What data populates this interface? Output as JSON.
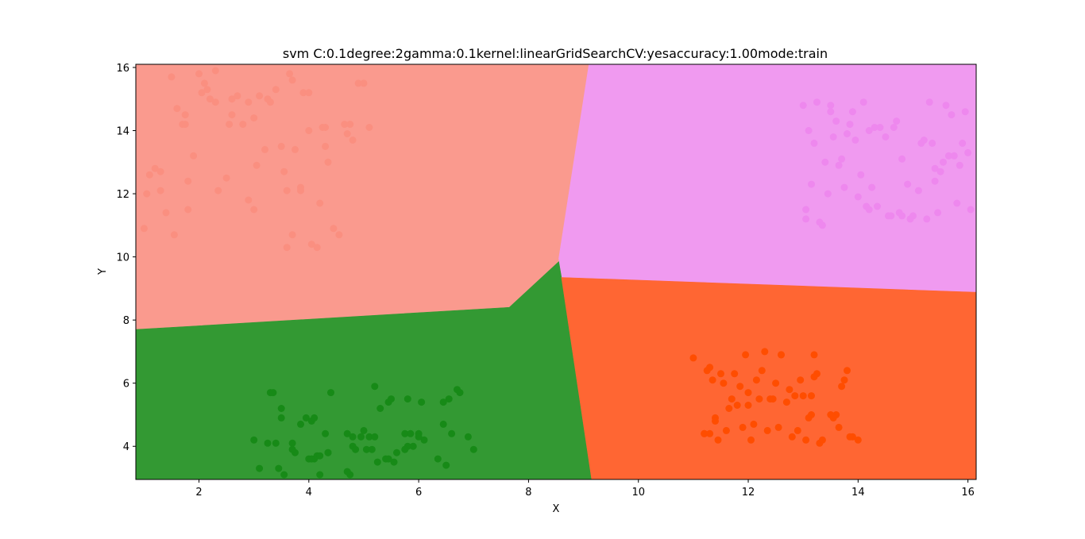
{
  "chart_data": {
    "type": "scatter",
    "title": "svm C:0.1degree:2gamma:0.1kernel:linearGridSearchCV:yesaccuracy:1.00mode:train",
    "xlabel": "X",
    "ylabel": "Y",
    "xlim": [
      0.85,
      16.15
    ],
    "ylim": [
      2.95,
      16.1
    ],
    "xticks": [
      2,
      4,
      6,
      8,
      10,
      12,
      14,
      16
    ],
    "yticks": [
      4,
      6,
      8,
      10,
      12,
      14,
      16
    ],
    "grid": false,
    "legend": "none",
    "decision_regions": [
      {
        "class": "salmon",
        "color": "#fa9a8e",
        "polygon": [
          [
            0.85,
            16.1
          ],
          [
            9.1,
            16.1
          ],
          [
            8.55,
            9.95
          ],
          [
            8.55,
            9.85
          ],
          [
            7.65,
            8.4
          ],
          [
            0.85,
            7.7
          ]
        ]
      },
      {
        "class": "violet",
        "color": "#f09af0",
        "polygon": [
          [
            9.1,
            16.1
          ],
          [
            16.15,
            16.1
          ],
          [
            16.15,
            8.88
          ],
          [
            8.6,
            9.35
          ],
          [
            8.55,
            9.95
          ]
        ]
      },
      {
        "class": "green",
        "color": "#339933",
        "polygon": [
          [
            0.85,
            7.7
          ],
          [
            7.65,
            8.4
          ],
          [
            8.55,
            9.85
          ],
          [
            8.6,
            9.35
          ],
          [
            9.15,
            2.95
          ],
          [
            0.85,
            2.95
          ]
        ]
      },
      {
        "class": "orangered",
        "color": "#ff6633",
        "polygon": [
          [
            8.6,
            9.35
          ],
          [
            16.15,
            8.88
          ],
          [
            16.15,
            2.95
          ],
          [
            9.15,
            2.95
          ]
        ]
      }
    ],
    "series": [
      {
        "color": "#fa8f80",
        "x": [
          1.0,
          1.2,
          1.3,
          1.4,
          1.5,
          1.55,
          1.6,
          1.7,
          1.75,
          1.8,
          1.8,
          1.9,
          2.0,
          2.05,
          2.1,
          2.15,
          2.2,
          2.3,
          2.35,
          2.5,
          2.6,
          2.6,
          2.7,
          2.8,
          2.9,
          3.0,
          3.05,
          3.1,
          3.2,
          3.3,
          3.4,
          3.5,
          3.55,
          3.6,
          3.65,
          3.7,
          3.75,
          3.85,
          3.9,
          4.0,
          4.05,
          4.15,
          4.2,
          4.3,
          4.35,
          4.45,
          4.55,
          4.65,
          4.7,
          4.75,
          4.8,
          4.9,
          5.0,
          5.1,
          1.05,
          1.1,
          2.3,
          2.55,
          3.0,
          3.25,
          3.7,
          4.3,
          1.3,
          3.85,
          4.0,
          2.9,
          1.75,
          3.6,
          4.25
        ],
        "y": [
          10.9,
          12.8,
          12.1,
          11.4,
          15.7,
          10.7,
          14.7,
          14.2,
          14.5,
          12.4,
          11.5,
          13.2,
          15.8,
          15.2,
          15.5,
          15.3,
          15.0,
          15.9,
          12.1,
          12.5,
          15.0,
          14.5,
          15.1,
          14.2,
          11.8,
          11.5,
          12.9,
          15.1,
          13.4,
          14.9,
          15.3,
          13.5,
          12.7,
          12.1,
          15.8,
          15.6,
          13.4,
          12.2,
          15.2,
          14.0,
          10.4,
          10.3,
          11.7,
          14.1,
          13.0,
          10.9,
          10.7,
          14.2,
          13.9,
          14.2,
          13.7,
          15.5,
          15.5,
          14.1,
          12.0,
          12.6,
          14.9,
          14.2,
          14.4,
          15.0,
          10.7,
          13.5,
          12.7,
          12.1,
          15.2,
          14.9,
          14.2,
          10.3,
          14.1
        ]
      },
      {
        "color": "#ee88ee",
        "x": [
          13.0,
          13.05,
          13.2,
          13.3,
          13.4,
          13.5,
          13.55,
          13.6,
          13.7,
          13.75,
          13.8,
          13.9,
          14.0,
          14.1,
          14.15,
          14.2,
          14.3,
          14.35,
          14.4,
          14.5,
          14.6,
          14.7,
          14.8,
          14.9,
          15.0,
          15.1,
          15.2,
          15.3,
          15.35,
          15.4,
          15.5,
          15.6,
          15.7,
          15.75,
          15.8,
          15.9,
          16.0,
          16.05,
          13.1,
          13.25,
          13.45,
          13.65,
          13.85,
          14.05,
          14.25,
          14.55,
          14.75,
          14.95,
          15.15,
          15.45,
          15.65,
          15.85,
          13.15,
          13.35,
          13.95,
          14.65,
          15.25,
          15.55,
          15.95,
          13.05,
          13.5,
          14.2,
          14.8,
          15.4
        ],
        "y": [
          14.8,
          11.2,
          13.6,
          11.1,
          13.0,
          14.8,
          13.8,
          14.3,
          13.1,
          12.2,
          13.9,
          14.6,
          11.9,
          14.9,
          11.6,
          11.5,
          14.1,
          11.6,
          14.1,
          13.8,
          11.3,
          14.3,
          11.3,
          12.3,
          11.3,
          12.1,
          13.7,
          14.9,
          13.6,
          12.8,
          12.7,
          14.8,
          14.5,
          13.2,
          11.7,
          13.6,
          13.3,
          11.5,
          14.0,
          14.9,
          12.0,
          12.9,
          14.2,
          12.6,
          12.2,
          11.3,
          11.4,
          11.2,
          13.6,
          11.4,
          13.2,
          12.9,
          12.3,
          11.0,
          13.7,
          14.1,
          11.2,
          13.0,
          14.6,
          11.5,
          14.6,
          14.0,
          13.1,
          12.4
        ]
      },
      {
        "color": "#178a17",
        "x": [
          3.0,
          3.1,
          3.25,
          3.3,
          3.4,
          3.5,
          3.5,
          3.55,
          3.7,
          3.75,
          3.85,
          3.95,
          4.0,
          4.05,
          4.1,
          4.15,
          4.2,
          4.3,
          4.35,
          4.4,
          4.7,
          4.75,
          4.8,
          4.85,
          4.95,
          5.0,
          5.05,
          5.1,
          5.15,
          5.2,
          5.25,
          5.3,
          5.4,
          5.45,
          5.5,
          5.55,
          5.6,
          5.75,
          5.8,
          5.85,
          5.9,
          6.0,
          6.05,
          6.1,
          6.35,
          6.45,
          6.5,
          6.55,
          6.6,
          6.7,
          6.75,
          6.9,
          7.0,
          3.35,
          4.1,
          4.35,
          5.2,
          5.8,
          6.45,
          3.45,
          4.05,
          4.7,
          5.45,
          6.0,
          3.7,
          4.2,
          4.8,
          5.75
        ],
        "y": [
          4.2,
          3.3,
          4.1,
          5.7,
          4.1,
          5.2,
          4.9,
          3.1,
          4.1,
          3.8,
          4.7,
          4.9,
          3.6,
          4.8,
          3.6,
          3.7,
          3.1,
          4.4,
          3.8,
          5.7,
          4.4,
          3.1,
          4.0,
          3.9,
          4.3,
          4.5,
          3.9,
          4.3,
          3.9,
          5.9,
          3.5,
          5.2,
          3.6,
          5.4,
          5.5,
          3.5,
          3.8,
          4.4,
          5.5,
          4.4,
          4.0,
          4.4,
          5.4,
          4.2,
          3.6,
          4.7,
          3.4,
          5.5,
          4.4,
          5.8,
          5.7,
          4.3,
          3.9,
          5.7,
          4.9,
          3.8,
          4.3,
          4.0,
          5.4,
          3.3,
          3.6,
          3.2,
          3.6,
          4.3,
          3.9,
          3.7,
          4.3,
          3.9
        ],
        "note": ""
      },
      {
        "color": "#ff4d00",
        "x": [
          11.0,
          11.2,
          11.25,
          11.3,
          11.35,
          11.4,
          11.45,
          11.5,
          11.55,
          11.6,
          11.7,
          11.75,
          11.8,
          11.85,
          11.9,
          12.0,
          12.05,
          12.1,
          12.15,
          12.2,
          12.3,
          12.35,
          12.4,
          12.5,
          12.55,
          12.6,
          12.7,
          12.8,
          12.85,
          12.9,
          12.95,
          13.0,
          13.1,
          13.15,
          13.2,
          13.25,
          13.3,
          13.35,
          13.5,
          13.6,
          13.65,
          13.7,
          13.75,
          13.8,
          13.9,
          14.0,
          11.3,
          11.65,
          12.25,
          12.75,
          13.05,
          13.55,
          11.4,
          11.95,
          12.45,
          13.15,
          13.85,
          11.2,
          12.0,
          12.6,
          13.2
        ],
        "y": [
          6.8,
          4.4,
          6.4,
          4.4,
          6.1,
          4.9,
          4.2,
          6.3,
          6.0,
          4.5,
          5.5,
          6.3,
          5.3,
          5.9,
          4.6,
          5.7,
          4.2,
          4.7,
          6.1,
          5.5,
          7.0,
          4.5,
          5.5,
          6.0,
          4.6,
          6.9,
          5.4,
          4.3,
          5.6,
          4.5,
          6.1,
          5.6,
          4.9,
          5.0,
          6.9,
          6.3,
          4.1,
          4.2,
          5.0,
          5.0,
          4.6,
          5.9,
          6.1,
          6.4,
          4.3,
          4.2,
          6.5,
          5.2,
          6.4,
          5.8,
          4.2,
          4.9,
          4.8,
          6.9,
          5.5,
          5.6,
          4.3,
          4.4,
          5.3,
          6.9,
          6.2
        ]
      }
    ]
  }
}
